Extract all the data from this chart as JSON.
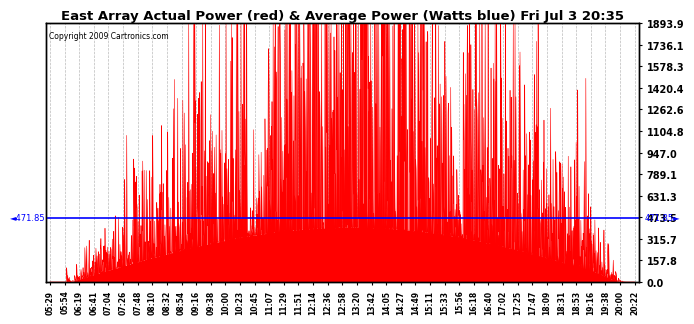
{
  "title": "East Array Actual Power (red) & Average Power (Watts blue) Fri Jul 3 20:35",
  "copyright": "Copyright 2009 Cartronics.com",
  "avg_power": 471.85,
  "y_max": 1893.9,
  "y_min": 0.0,
  "y_ticks": [
    0.0,
    157.8,
    315.7,
    473.5,
    631.3,
    789.1,
    947.0,
    1104.8,
    1262.6,
    1420.4,
    1578.3,
    1736.1,
    1893.9
  ],
  "background_color": "#ffffff",
  "fill_color": "#ff0000",
  "avg_line_color": "#0000ff",
  "grid_color": "#bbbbbb",
  "title_fontsize": 9.5,
  "x_labels": [
    "05:29",
    "05:54",
    "06:19",
    "06:41",
    "07:04",
    "07:26",
    "07:48",
    "08:10",
    "08:32",
    "08:54",
    "09:16",
    "09:38",
    "10:00",
    "10:23",
    "10:45",
    "11:07",
    "11:29",
    "11:51",
    "12:14",
    "12:36",
    "12:58",
    "13:20",
    "13:42",
    "14:05",
    "14:27",
    "14:49",
    "15:11",
    "15:33",
    "15:56",
    "16:18",
    "16:40",
    "17:02",
    "17:25",
    "17:47",
    "18:09",
    "18:31",
    "18:53",
    "19:16",
    "19:38",
    "20:00",
    "20:22"
  ]
}
